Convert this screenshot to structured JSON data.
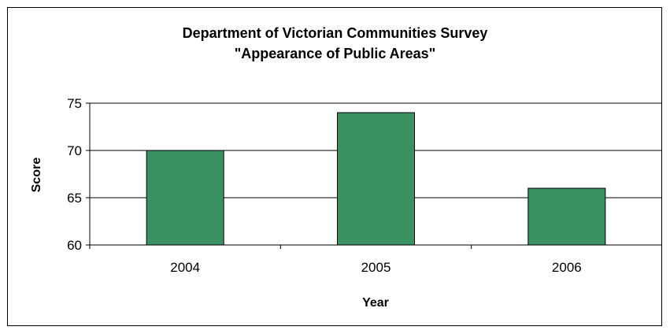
{
  "chart_data": {
    "type": "bar",
    "title_lines": [
      "Department of Victorian Communities Survey",
      "\"Appearance of  Public Areas\""
    ],
    "xlabel": "Year",
    "ylabel": "Score",
    "categories": [
      "2004",
      "2005",
      "2006"
    ],
    "values": [
      70,
      74,
      66
    ],
    "ylim": [
      60,
      75
    ],
    "yticks": [
      60,
      65,
      70,
      75
    ],
    "grid": true,
    "bar_color": "#3A9262",
    "legend": "none"
  }
}
